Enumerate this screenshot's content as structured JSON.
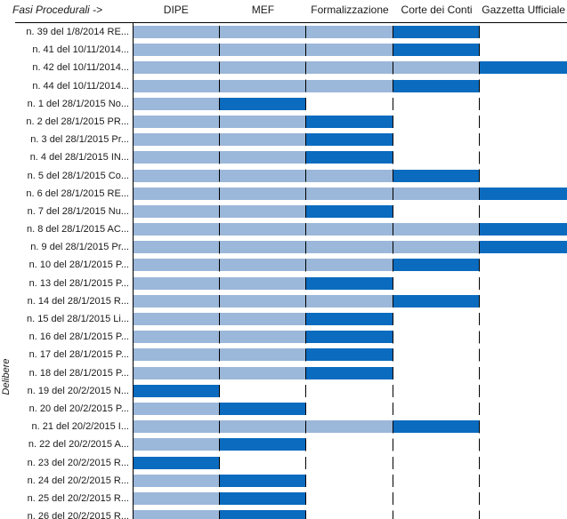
{
  "chart_data": {
    "type": "bar",
    "subtype": "gantt-phase-progress",
    "orientation": "horizontal",
    "x_axis_title": "Fasi Procedurali ->",
    "ylabel": "Delibere",
    "grid": "dashed-vertical-column-boundaries",
    "legend_position": "none",
    "phases": [
      "DIPE",
      "MEF",
      "Formalizzazione",
      "Corte dei Conti",
      "Gazzetta Ufficiale"
    ],
    "colors": {
      "completed_fill": "#9BB7D9",
      "current_fill": "#0A6BBF",
      "line": "#000000"
    },
    "rows": [
      {
        "label": "n. 39 del 1/8/2014 RE...",
        "completed_phases": 3,
        "current_phase": "Corte dei Conti"
      },
      {
        "label": "n. 41 del 10/11/2014...",
        "completed_phases": 3,
        "current_phase": "Corte dei Conti"
      },
      {
        "label": "n. 42 del 10/11/2014...",
        "completed_phases": 4,
        "current_phase": "Gazzetta Ufficiale"
      },
      {
        "label": "n. 44 del 10/11/2014...",
        "completed_phases": 3,
        "current_phase": "Corte dei Conti"
      },
      {
        "label": "n. 1 del 28/1/2015 No...",
        "completed_phases": 1,
        "current_phase": "MEF"
      },
      {
        "label": "n. 2 del 28/1/2015 PR...",
        "completed_phases": 2,
        "current_phase": "Formalizzazione"
      },
      {
        "label": "n. 3 del 28/1/2015 Pr...",
        "completed_phases": 2,
        "current_phase": "Formalizzazione"
      },
      {
        "label": "n. 4 del 28/1/2015 IN...",
        "completed_phases": 2,
        "current_phase": "Formalizzazione"
      },
      {
        "label": "n. 5 del 28/1/2015 Co...",
        "completed_phases": 3,
        "current_phase": "Corte dei Conti"
      },
      {
        "label": "n. 6 del 28/1/2015 RE...",
        "completed_phases": 4,
        "current_phase": "Gazzetta Ufficiale"
      },
      {
        "label": "n. 7 del 28/1/2015 Nu...",
        "completed_phases": 2,
        "current_phase": "Formalizzazione"
      },
      {
        "label": "n. 8 del 28/1/2015 AC...",
        "completed_phases": 4,
        "current_phase": "Gazzetta Ufficiale"
      },
      {
        "label": "n. 9 del 28/1/2015 Pr...",
        "completed_phases": 4,
        "current_phase": "Gazzetta Ufficiale"
      },
      {
        "label": "n. 10 del 28/1/2015 P...",
        "completed_phases": 3,
        "current_phase": "Corte dei Conti"
      },
      {
        "label": "n. 13 del 28/1/2015 P...",
        "completed_phases": 2,
        "current_phase": "Formalizzazione"
      },
      {
        "label": "n. 14 del 28/1/2015 R...",
        "completed_phases": 3,
        "current_phase": "Corte dei Conti"
      },
      {
        "label": "n. 15 del 28/1/2015 Li...",
        "completed_phases": 2,
        "current_phase": "Formalizzazione"
      },
      {
        "label": "n. 16 del 28/1/2015 P...",
        "completed_phases": 2,
        "current_phase": "Formalizzazione"
      },
      {
        "label": "n. 17 del 28/1/2015 P...",
        "completed_phases": 2,
        "current_phase": "Formalizzazione"
      },
      {
        "label": "n. 18 del 28/1/2015 P...",
        "completed_phases": 2,
        "current_phase": "Formalizzazione"
      },
      {
        "label": "n. 19 del 20/2/2015 N...",
        "completed_phases": 0,
        "current_phase": "DIPE"
      },
      {
        "label": "n. 20 del 20/2/2015 P...",
        "completed_phases": 1,
        "current_phase": "MEF"
      },
      {
        "label": "n. 21 del 20/2/2015 I...",
        "completed_phases": 3,
        "current_phase": "Corte dei Conti"
      },
      {
        "label": "n. 22 del 20/2/2015 A...",
        "completed_phases": 1,
        "current_phase": "MEF"
      },
      {
        "label": "n. 23 del 20/2/2015 R...",
        "completed_phases": 0,
        "current_phase": "DIPE"
      },
      {
        "label": "n. 24 del 20/2/2015 R...",
        "completed_phases": 1,
        "current_phase": "MEF"
      },
      {
        "label": "n. 25 del 20/2/2015 R...",
        "completed_phases": 1,
        "current_phase": "MEF"
      },
      {
        "label": "n. 26 del 20/2/2015 R...",
        "completed_phases": 1,
        "current_phase": "MEF"
      }
    ]
  }
}
